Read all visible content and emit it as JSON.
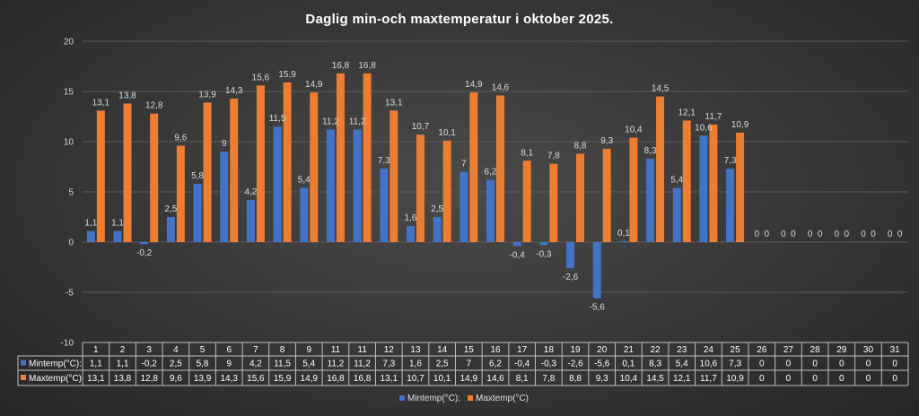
{
  "chart_data": {
    "type": "bar",
    "title": "Daglig min-och maxtemperatur i oktober 2025.",
    "ylim": [
      -10,
      20
    ],
    "yticks": [
      -10,
      -5,
      0,
      5,
      10,
      15,
      20
    ],
    "grid": true,
    "legend": "bottom",
    "categories": [
      "1",
      "2",
      "3",
      "4",
      "5",
      "6",
      "7",
      "8",
      "9",
      "11",
      "11",
      "12",
      "13",
      "14",
      "15",
      "16",
      "17",
      "18",
      "19",
      "20",
      "21",
      "22",
      "23",
      "24",
      "25",
      "26",
      "27",
      "28",
      "29",
      "30",
      "31"
    ],
    "series": [
      {
        "name": "Mintemp(°C):",
        "color": "#4472c4",
        "values": [
          1.1,
          1.1,
          -0.2,
          2.5,
          5.8,
          9,
          4.2,
          11.5,
          5.4,
          11.2,
          11.2,
          7.3,
          1.6,
          2.5,
          7,
          6.2,
          -0.4,
          -0.3,
          -2.6,
          -5.6,
          0.1,
          8.3,
          5.4,
          10.6,
          7.3,
          0,
          0,
          0,
          0,
          0,
          0
        ],
        "labels": [
          "1,1",
          "1,1",
          "-0,2",
          "2,5",
          "5,8",
          "9",
          "4,2",
          "11,5",
          "5,4",
          "11,2",
          "11,2",
          "7,3",
          "1,6",
          "2,5",
          "7",
          "6,2",
          "-0,4",
          "-0,3",
          "-2,6",
          "-5,6",
          "0,1",
          "8,3",
          "5,4",
          "10,6",
          "7,3",
          "0",
          "0",
          "0",
          "0",
          "0",
          "0"
        ]
      },
      {
        "name": "Maxtemp(°C)",
        "color": "#ed7d31",
        "values": [
          13.1,
          13.8,
          12.8,
          9.6,
          13.9,
          14.3,
          15.6,
          15.9,
          14.9,
          16.8,
          16.8,
          13.1,
          10.7,
          10.1,
          14.9,
          14.6,
          8.1,
          7.8,
          8.8,
          9.3,
          10.4,
          14.5,
          12.1,
          11.7,
          10.9,
          0,
          0,
          0,
          0,
          0,
          0
        ],
        "labels": [
          "13,1",
          "13,8",
          "12,8",
          "9,6",
          "13,9",
          "14,3",
          "15,6",
          "15,9",
          "14,9",
          "16,8",
          "16,8",
          "13,1",
          "10,7",
          "10,1",
          "14,9",
          "14,6",
          "8,1",
          "7,8",
          "8,8",
          "9,3",
          "10,4",
          "14,5",
          "12,1",
          "11,7",
          "10,9",
          "0",
          "0",
          "0",
          "0",
          "0",
          "0"
        ]
      }
    ]
  }
}
